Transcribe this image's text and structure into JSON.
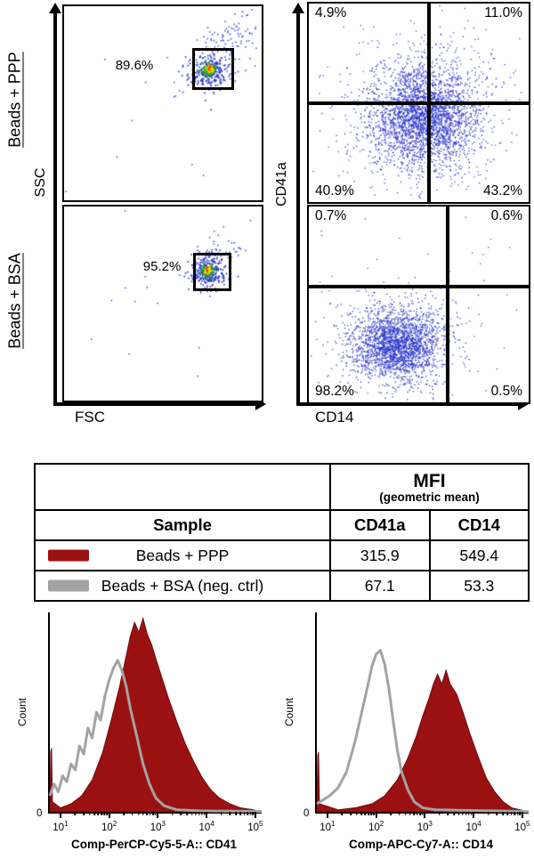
{
  "colors": {
    "ppp_red": "#9b1111",
    "bsa_gray": "#a3a3a3",
    "dot_blue": "#2a35cc",
    "axis_black": "#000000"
  },
  "chart_data": [
    {
      "id": "fsc-ssc-ppp",
      "type": "scatter",
      "title": "Beads + PPP",
      "xlabel": "FSC",
      "ylabel": "SSC",
      "gate_label": "89.6%",
      "seed": 11,
      "clusters": [
        {
          "cx": 0.73,
          "cy": 0.33,
          "sx": 0.05,
          "sy": 0.045,
          "n": 320,
          "color": "#2a35cc",
          "size": 1.6
        },
        {
          "cx": 0.73,
          "cy": 0.325,
          "sx": 0.017,
          "sy": 0.016,
          "n": 130,
          "color": "#1fae1f",
          "size": 1.8
        },
        {
          "cx": 0.732,
          "cy": 0.32,
          "sx": 0.008,
          "sy": 0.011,
          "n": 45,
          "color": "#ffd800",
          "size": 1.8
        },
        {
          "cx": 0.731,
          "cy": 0.318,
          "sx": 0.004,
          "sy": 0.006,
          "n": 10,
          "color": "#ff4400",
          "size": 1.8
        },
        {
          "cx": 0.82,
          "cy": 0.21,
          "sx": 0.075,
          "sy": 0.07,
          "n": 65,
          "color": "#2a35cc",
          "size": 1.4
        },
        {
          "cx": 0.9,
          "cy": 0.11,
          "sx": 0.05,
          "sy": 0.045,
          "n": 28,
          "color": "#2a35cc",
          "size": 1.4
        },
        {
          "cx": 0.55,
          "cy": 0.45,
          "sx": 0.3,
          "sy": 0.27,
          "n": 28,
          "color": "#2a35cc",
          "size": 1.4
        }
      ]
    },
    {
      "id": "fsc-ssc-bsa",
      "type": "scatter",
      "title": "Beads + BSA",
      "xlabel": "FSC",
      "ylabel": "SSC",
      "gate_label": "95.2%",
      "seed": 23,
      "clusters": [
        {
          "cx": 0.72,
          "cy": 0.335,
          "sx": 0.045,
          "sy": 0.04,
          "n": 300,
          "color": "#2a35cc",
          "size": 1.6
        },
        {
          "cx": 0.72,
          "cy": 0.33,
          "sx": 0.016,
          "sy": 0.015,
          "n": 120,
          "color": "#1fae1f",
          "size": 1.8
        },
        {
          "cx": 0.722,
          "cy": 0.327,
          "sx": 0.008,
          "sy": 0.01,
          "n": 40,
          "color": "#ffd800",
          "size": 1.8
        },
        {
          "cx": 0.72,
          "cy": 0.325,
          "sx": 0.004,
          "sy": 0.006,
          "n": 8,
          "color": "#ff4400",
          "size": 1.8
        },
        {
          "cx": 0.8,
          "cy": 0.235,
          "sx": 0.06,
          "sy": 0.055,
          "n": 45,
          "color": "#2a35cc",
          "size": 1.4
        },
        {
          "cx": 0.55,
          "cy": 0.5,
          "sx": 0.28,
          "sy": 0.27,
          "n": 20,
          "color": "#2a35cc",
          "size": 1.4
        }
      ]
    },
    {
      "id": "quad-ppp",
      "type": "scatter",
      "sample": "Beads + PPP",
      "xlabel": "CD14",
      "ylabel": "CD41a",
      "cross": {
        "x": 0.546,
        "y": 0.5
      },
      "quadrants": {
        "upper_left": "4.9%",
        "upper_right": "11.0%",
        "lower_left": "40.9%",
        "lower_right": "43.2%"
      },
      "seed": 37,
      "clusters": [
        {
          "cx": 0.52,
          "cy": 0.57,
          "sx": 0.115,
          "sy": 0.115,
          "n": 2400,
          "color": "#2a35cc",
          "size": 1.3
        },
        {
          "cx": 0.53,
          "cy": 0.55,
          "sx": 0.21,
          "sy": 0.19,
          "n": 450,
          "color": "#2a35cc",
          "size": 1.2
        },
        {
          "cx": 0.6,
          "cy": 0.34,
          "sx": 0.13,
          "sy": 0.11,
          "n": 170,
          "color": "#2a35cc",
          "size": 1.2
        },
        {
          "cx": 0.47,
          "cy": 0.78,
          "sx": 0.17,
          "sy": 0.09,
          "n": 110,
          "color": "#2a35cc",
          "size": 1.2
        },
        {
          "cx": 0.5,
          "cy": 0.5,
          "sx": 0.33,
          "sy": 0.3,
          "n": 80,
          "color": "#2a35cc",
          "size": 1.2
        }
      ]
    },
    {
      "id": "quad-bsa",
      "type": "scatter",
      "sample": "Beads + BSA",
      "xlabel": "CD14",
      "ylabel": "CD41a",
      "cross": {
        "x": 0.63,
        "y": 0.41
      },
      "quadrants": {
        "upper_left": "0.7%",
        "upper_right": "0.6%",
        "lower_left": "98.2%",
        "lower_right": "0.5%"
      },
      "seed": 53,
      "clusters": [
        {
          "cx": 0.4,
          "cy": 0.71,
          "sx": 0.1,
          "sy": 0.088,
          "n": 2000,
          "color": "#2a35cc",
          "size": 1.3
        },
        {
          "cx": 0.42,
          "cy": 0.69,
          "sx": 0.17,
          "sy": 0.15,
          "n": 320,
          "color": "#2a35cc",
          "size": 1.2
        },
        {
          "cx": 0.5,
          "cy": 0.5,
          "sx": 0.3,
          "sy": 0.28,
          "n": 50,
          "color": "#2a35cc",
          "size": 1.2
        }
      ]
    },
    {
      "id": "mfi-table",
      "type": "table",
      "header": {
        "mfi_title": "MFI",
        "mfi_subtitle": "(geometric mean)",
        "sample": "Sample",
        "col1": "CD41a",
        "col2": "CD14"
      },
      "rows": [
        {
          "swatch": "#9b1111",
          "sample": "Beads + PPP",
          "cd41a": "315.9",
          "cd14": "549.4"
        },
        {
          "swatch": "#a3a3a3",
          "sample": "Beads + BSA  (neg. ctrl)",
          "cd41a": "67.1",
          "cd14": "53.3"
        }
      ]
    },
    {
      "id": "hist-cd41",
      "type": "histogram",
      "xlabel": "Comp-PerCP-Cy5-5-A:: CD41",
      "ylabel": "Count",
      "y_zero": "0",
      "xscale": "log10",
      "tick_exponents": [
        1,
        2,
        3,
        4,
        5
      ],
      "tick_positions": [
        0.05,
        0.28,
        0.51,
        0.74,
        0.97
      ],
      "series": [
        {
          "name": "Beads + PPP",
          "style": "filled",
          "color": "#9b1111",
          "points": [
            [
              0,
              0
            ],
            [
              0.004,
              0.3
            ],
            [
              0.008,
              0.32
            ],
            [
              0.012,
              0.05
            ],
            [
              0.05,
              0.02
            ],
            [
              0.1,
              0.04
            ],
            [
              0.15,
              0.08
            ],
            [
              0.2,
              0.16
            ],
            [
              0.25,
              0.3
            ],
            [
              0.29,
              0.46
            ],
            [
              0.33,
              0.63
            ],
            [
              0.36,
              0.78
            ],
            [
              0.38,
              0.88
            ],
            [
              0.4,
              0.95
            ],
            [
              0.42,
              0.9
            ],
            [
              0.44,
              0.97
            ],
            [
              0.46,
              0.89
            ],
            [
              0.48,
              0.84
            ],
            [
              0.5,
              0.77
            ],
            [
              0.53,
              0.67
            ],
            [
              0.56,
              0.57
            ],
            [
              0.6,
              0.45
            ],
            [
              0.64,
              0.34
            ],
            [
              0.68,
              0.25
            ],
            [
              0.72,
              0.17
            ],
            [
              0.76,
              0.11
            ],
            [
              0.8,
              0.07
            ],
            [
              0.85,
              0.04
            ],
            [
              0.9,
              0.02
            ],
            [
              0.96,
              0.01
            ],
            [
              1,
              0
            ]
          ]
        },
        {
          "name": "Beads + BSA (neg. ctrl)",
          "style": "outline",
          "color": "#a3a3a3",
          "points": [
            [
              0,
              0.08
            ],
            [
              0.02,
              0.14
            ],
            [
              0.04,
              0.1
            ],
            [
              0.06,
              0.18
            ],
            [
              0.08,
              0.15
            ],
            [
              0.1,
              0.24
            ],
            [
              0.12,
              0.21
            ],
            [
              0.14,
              0.33
            ],
            [
              0.16,
              0.29
            ],
            [
              0.18,
              0.42
            ],
            [
              0.2,
              0.37
            ],
            [
              0.22,
              0.5
            ],
            [
              0.24,
              0.46
            ],
            [
              0.26,
              0.58
            ],
            [
              0.28,
              0.66
            ],
            [
              0.3,
              0.72
            ],
            [
              0.32,
              0.76
            ],
            [
              0.34,
              0.71
            ],
            [
              0.36,
              0.63
            ],
            [
              0.38,
              0.52
            ],
            [
              0.41,
              0.38
            ],
            [
              0.44,
              0.24
            ],
            [
              0.47,
              0.14
            ],
            [
              0.5,
              0.07
            ],
            [
              0.54,
              0.03
            ],
            [
              0.6,
              0.01
            ],
            [
              0.7,
              0.005
            ],
            [
              1,
              0.002
            ]
          ]
        }
      ]
    },
    {
      "id": "hist-cd14",
      "type": "histogram",
      "xlabel": "Comp-APC-Cy7-A:: CD14",
      "ylabel": "Count",
      "y_zero": "0",
      "xscale": "log10",
      "tick_exponents": [
        1,
        2,
        3,
        4,
        5
      ],
      "tick_positions": [
        0.05,
        0.28,
        0.51,
        0.74,
        0.97
      ],
      "series": [
        {
          "name": "Beads + PPP",
          "style": "filled",
          "color": "#9b1111",
          "points": [
            [
              0,
              0
            ],
            [
              0.004,
              0.28
            ],
            [
              0.008,
              0.3
            ],
            [
              0.012,
              0.04
            ],
            [
              0.1,
              0.01
            ],
            [
              0.18,
              0.02
            ],
            [
              0.26,
              0.04
            ],
            [
              0.32,
              0.08
            ],
            [
              0.38,
              0.16
            ],
            [
              0.43,
              0.27
            ],
            [
              0.47,
              0.38
            ],
            [
              0.5,
              0.48
            ],
            [
              0.53,
              0.57
            ],
            [
              0.55,
              0.64
            ],
            [
              0.57,
              0.69
            ],
            [
              0.59,
              0.64
            ],
            [
              0.61,
              0.71
            ],
            [
              0.63,
              0.64
            ],
            [
              0.66,
              0.59
            ],
            [
              0.69,
              0.5
            ],
            [
              0.72,
              0.4
            ],
            [
              0.76,
              0.28
            ],
            [
              0.8,
              0.17
            ],
            [
              0.84,
              0.1
            ],
            [
              0.88,
              0.05
            ],
            [
              0.92,
              0.02
            ],
            [
              0.96,
              0.01
            ],
            [
              1,
              0
            ]
          ]
        },
        {
          "name": "Beads + BSA (neg. ctrl)",
          "style": "outline",
          "color": "#a3a3a3",
          "points": [
            [
              0,
              0.04
            ],
            [
              0.03,
              0.06
            ],
            [
              0.06,
              0.08
            ],
            [
              0.1,
              0.12
            ],
            [
              0.14,
              0.2
            ],
            [
              0.18,
              0.35
            ],
            [
              0.21,
              0.49
            ],
            [
              0.24,
              0.63
            ],
            [
              0.26,
              0.73
            ],
            [
              0.28,
              0.79
            ],
            [
              0.3,
              0.81
            ],
            [
              0.32,
              0.74
            ],
            [
              0.34,
              0.62
            ],
            [
              0.36,
              0.46
            ],
            [
              0.38,
              0.31
            ],
            [
              0.4,
              0.2
            ],
            [
              0.43,
              0.11
            ],
            [
              0.46,
              0.05
            ],
            [
              0.5,
              0.02
            ],
            [
              0.56,
              0.01
            ],
            [
              1,
              0.002
            ]
          ]
        }
      ]
    }
  ]
}
